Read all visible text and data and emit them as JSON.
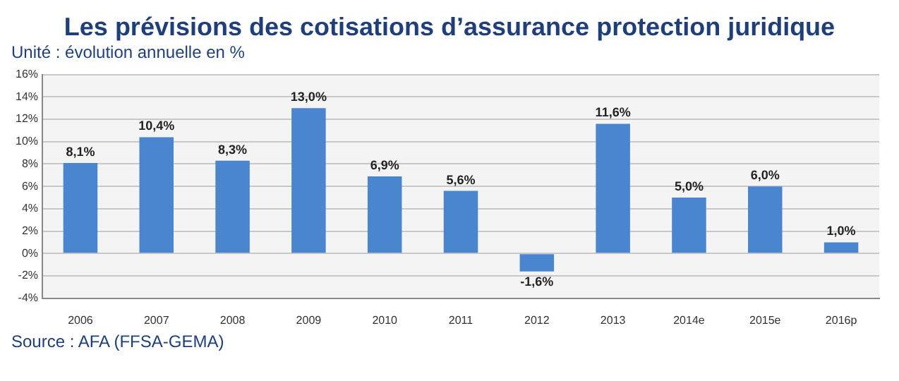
{
  "chart_data": {
    "type": "bar",
    "title": "Les prévisions des cotisations d’assurance protection juridique",
    "subtitle": "Unité : évolution annuelle en %",
    "categories": [
      "2006",
      "2007",
      "2008",
      "2009",
      "2010",
      "2011",
      "2012",
      "2013",
      "2014e",
      "2015e",
      "2016p"
    ],
    "values": [
      8.1,
      10.4,
      8.3,
      13.0,
      6.9,
      5.6,
      -1.6,
      11.6,
      5.0,
      6.0,
      1.0
    ],
    "value_labels": [
      "8,1%",
      "10,4%",
      "8,3%",
      "13,0%",
      "6,9%",
      "5,6%",
      "-1,6%",
      "11,6%",
      "5,0%",
      "6,0%",
      "1,0%"
    ],
    "color": "#4a86cf",
    "ylim": [
      -4,
      16
    ],
    "yticks": [
      {
        "value": -4,
        "label": "-4%"
      },
      {
        "value": -2,
        "label": "-2%"
      },
      {
        "value": 0,
        "label": "0%"
      },
      {
        "value": 2,
        "label": "2%"
      },
      {
        "value": 4,
        "label": "4%"
      },
      {
        "value": 6,
        "label": "6%"
      },
      {
        "value": 8,
        "label": "8%"
      },
      {
        "value": 10,
        "label": "10%"
      },
      {
        "value": 12,
        "label": "12%"
      },
      {
        "value": 14,
        "label": "14%"
      },
      {
        "value": 16,
        "label": "16%"
      }
    ],
    "grid": "y",
    "annotations": [
      "Source : AFA (FFSA-GEMA)"
    ]
  }
}
